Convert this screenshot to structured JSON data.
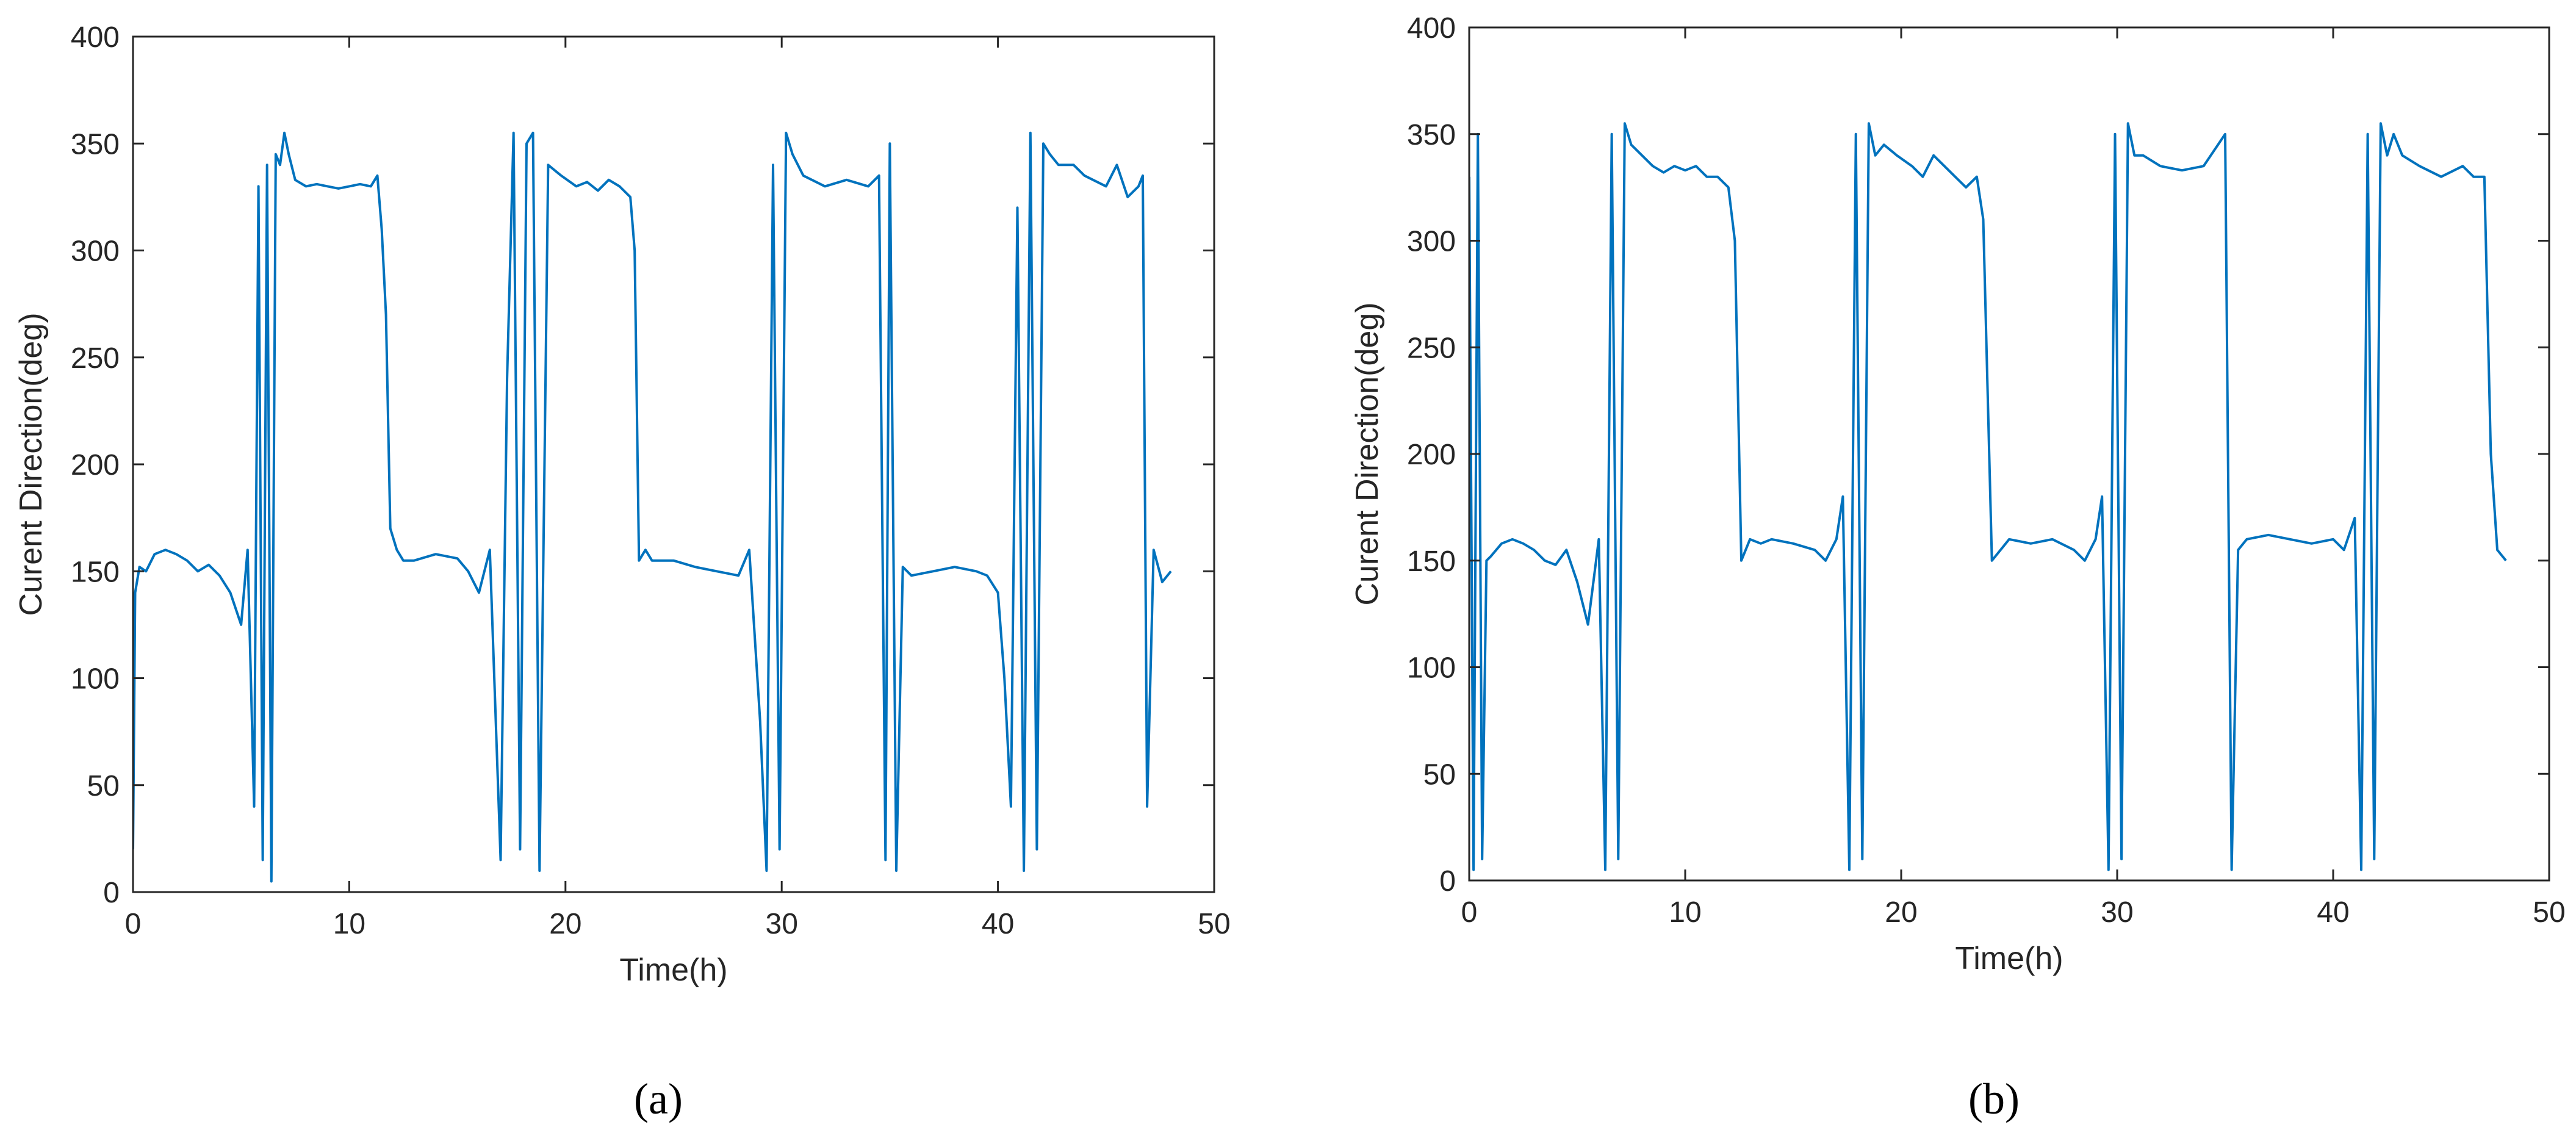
{
  "chart_data": [
    {
      "type": "line",
      "panel_label": "a",
      "caption": "(a)",
      "xlabel": "Time(h)",
      "ylabel": "Curent Direction(deg)",
      "xlim": [
        0,
        50
      ],
      "ylim": [
        0,
        400
      ],
      "xticks": [
        0,
        10,
        20,
        30,
        40,
        50
      ],
      "yticks": [
        0,
        50,
        100,
        150,
        200,
        250,
        300,
        350,
        400
      ],
      "grid": false,
      "color": "#0072BD",
      "series": [
        {
          "x": [
            0,
            0.1,
            0.3,
            0.6,
            1,
            1.5,
            2,
            2.5,
            3,
            3.5,
            4,
            4.5,
            5,
            5.3,
            5.6,
            5.8,
            6.0,
            6.2,
            6.4,
            6.6,
            6.8,
            7.0,
            7.2,
            7.5,
            8,
            8.5,
            9,
            9.5,
            10,
            10.5,
            11,
            11.3,
            11.5,
            11.7,
            11.9,
            12.2,
            12.5,
            13,
            14,
            15,
            15.5,
            16,
            16.5,
            17,
            17.3,
            17.6,
            17.9,
            18.2,
            18.5,
            18.8,
            19.2,
            19.8,
            20.5,
            21,
            21.5,
            22,
            22.5,
            23,
            23.2,
            23.4,
            23.7,
            24,
            25,
            26,
            27,
            28,
            28.5,
            29,
            29.3,
            29.6,
            29.9,
            30.2,
            30.5,
            31,
            32,
            33,
            34,
            34.5,
            34.8,
            35.0,
            35.3,
            35.6,
            36,
            37,
            38,
            39,
            39.5,
            40,
            40.3,
            40.6,
            40.9,
            41.2,
            41.5,
            41.8,
            42.1,
            42.4,
            42.8,
            43.5,
            44,
            45,
            45.5,
            46,
            46.5,
            46.7,
            46.9,
            47.2,
            47.6,
            48
          ],
          "y": [
            20,
            140,
            152,
            150,
            158,
            160,
            158,
            155,
            150,
            153,
            148,
            140,
            125,
            160,
            40,
            330,
            15,
            340,
            5,
            345,
            340,
            355,
            345,
            333,
            330,
            331,
            330,
            329,
            330,
            331,
            330,
            335,
            310,
            270,
            170,
            160,
            155,
            155,
            158,
            156,
            150,
            140,
            160,
            15,
            240,
            355,
            20,
            350,
            355,
            10,
            340,
            335,
            330,
            332,
            328,
            333,
            330,
            325,
            300,
            155,
            160,
            155,
            155,
            152,
            150,
            148,
            160,
            80,
            10,
            340,
            20,
            355,
            345,
            335,
            330,
            333,
            330,
            335,
            15,
            350,
            10,
            152,
            148,
            150,
            152,
            150,
            148,
            140,
            100,
            40,
            320,
            10,
            355,
            20,
            350,
            345,
            340,
            340,
            335,
            330,
            340,
            325,
            330,
            335,
            40,
            160,
            145,
            150
          ]
        }
      ]
    },
    {
      "type": "line",
      "panel_label": "b",
      "caption": "(b)",
      "xlabel": "Time(h)",
      "ylabel": "Curent Direction(deg)",
      "xlim": [
        0,
        50
      ],
      "ylim": [
        0,
        400
      ],
      "xticks": [
        0,
        10,
        20,
        30,
        40,
        50
      ],
      "yticks": [
        0,
        50,
        100,
        150,
        200,
        250,
        300,
        350,
        400
      ],
      "grid": false,
      "color": "#0072BD",
      "series": [
        {
          "x": [
            0,
            0.2,
            0.4,
            0.6,
            0.8,
            1,
            1.5,
            2,
            2.5,
            3,
            3.5,
            4,
            4.5,
            5,
            5.5,
            6,
            6.3,
            6.6,
            6.9,
            7.2,
            7.5,
            8,
            8.5,
            9,
            9.5,
            10,
            10.5,
            11,
            11.5,
            12,
            12.3,
            12.6,
            13,
            13.5,
            14,
            15,
            16,
            16.5,
            17,
            17.3,
            17.6,
            17.9,
            18.2,
            18.5,
            18.8,
            19.2,
            19.8,
            20.5,
            21,
            21.5,
            22,
            22.5,
            23,
            23.5,
            23.8,
            24.2,
            25,
            26,
            27,
            28,
            28.5,
            29,
            29.3,
            29.6,
            29.9,
            30.2,
            30.5,
            30.8,
            31.2,
            32,
            33,
            34,
            35,
            35.3,
            35.6,
            36,
            37,
            38,
            39,
            40,
            40.5,
            41,
            41.3,
            41.6,
            41.9,
            42.2,
            42.5,
            42.8,
            43.2,
            44,
            45,
            46,
            46.5,
            47,
            47.3,
            47.6,
            48
          ],
          "y": [
            330,
            5,
            350,
            10,
            150,
            152,
            158,
            160,
            158,
            155,
            150,
            148,
            155,
            140,
            120,
            160,
            5,
            350,
            10,
            355,
            345,
            340,
            335,
            332,
            335,
            333,
            335,
            330,
            330,
            325,
            300,
            150,
            160,
            158,
            160,
            158,
            155,
            150,
            160,
            180,
            5,
            350,
            10,
            355,
            340,
            345,
            340,
            335,
            330,
            340,
            335,
            330,
            325,
            330,
            310,
            150,
            160,
            158,
            160,
            155,
            150,
            160,
            180,
            5,
            350,
            10,
            355,
            340,
            340,
            335,
            333,
            335,
            350,
            5,
            155,
            160,
            162,
            160,
            158,
            160,
            155,
            170,
            5,
            350,
            10,
            355,
            340,
            350,
            340,
            335,
            330,
            335,
            330,
            330,
            200,
            155,
            150
          ]
        }
      ]
    }
  ]
}
